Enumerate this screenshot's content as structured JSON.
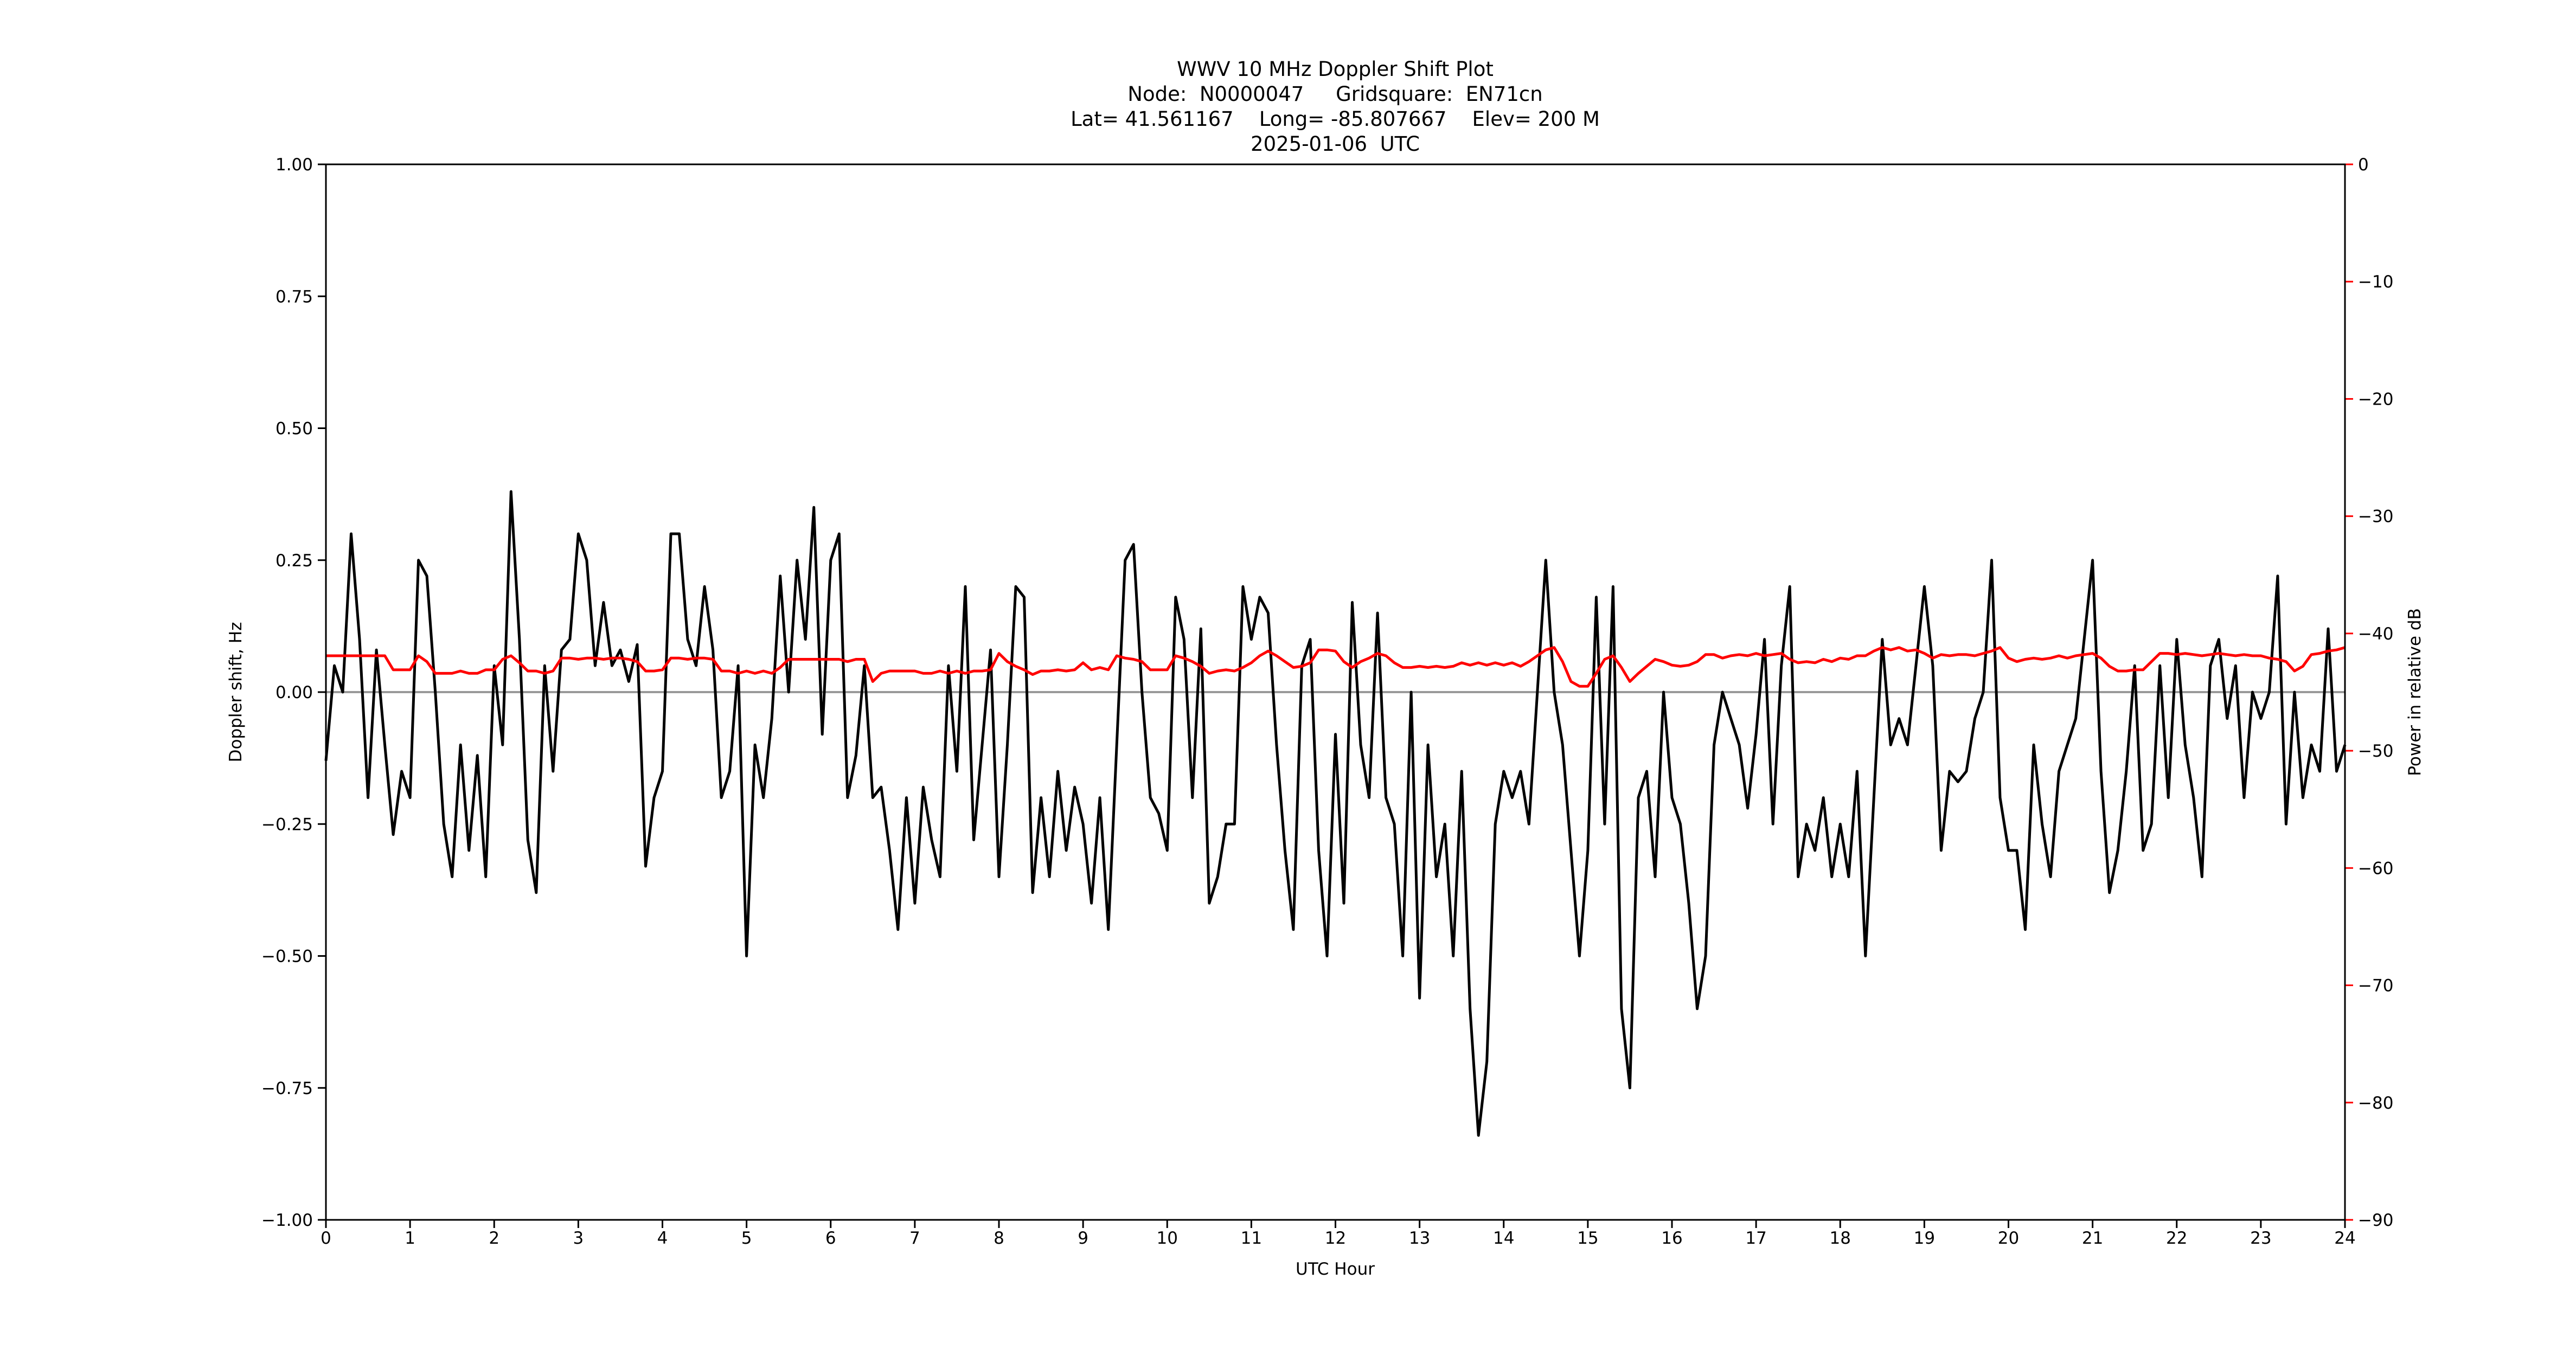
{
  "chart_data": {
    "type": "line",
    "title": [
      "WWV 10 MHz Doppler Shift Plot",
      "Node:  N0000047     Gridsquare:  EN71cn",
      "Lat= 41.561167    Long= -85.807667    Elev= 200 M",
      "2025-01-06  UTC"
    ],
    "xlabel": "UTC Hour",
    "ylabel": "Doppler shift, Hz",
    "y2label": "Power in relative dB",
    "xlim": [
      0,
      24
    ],
    "xticks": [
      0,
      1,
      2,
      3,
      4,
      5,
      6,
      7,
      8,
      9,
      10,
      11,
      12,
      13,
      14,
      15,
      16,
      17,
      18,
      19,
      20,
      21,
      22,
      23,
      24
    ],
    "ylim": [
      -1,
      1
    ],
    "yticks": [
      {
        "value": -1,
        "label": "−1.00"
      },
      {
        "value": -0.75,
        "label": "−0.75"
      },
      {
        "value": -0.5,
        "label": "−0.50"
      },
      {
        "value": -0.25,
        "label": "−0.25"
      },
      {
        "value": 0,
        "label": "0.00"
      },
      0.25,
      {
        "value": 0.5,
        "label": "0.50"
      },
      0.75,
      {
        "value": 1,
        "label": "1.00"
      }
    ],
    "y2lim": [
      -90,
      0
    ],
    "y2ticks": [
      {
        "value": -90,
        "label": "−90"
      },
      {
        "value": -80,
        "label": "−80"
      },
      {
        "value": -70,
        "label": "−70"
      },
      {
        "value": -60,
        "label": "−60"
      },
      {
        "value": -50,
        "label": "−50"
      },
      {
        "value": -40,
        "label": "−40"
      },
      {
        "value": -30,
        "label": "−30"
      },
      {
        "value": -20,
        "label": "−20"
      },
      {
        "value": -10,
        "label": "−10"
      },
      0
    ],
    "y2color": "#ff0000",
    "x": [
      0,
      0.1,
      0.2,
      0.3,
      0.4,
      0.5,
      0.6,
      0.7,
      0.8,
      0.9,
      1,
      1.1,
      1.2,
      1.3,
      1.4,
      1.5,
      1.6,
      1.7,
      1.8,
      1.9,
      2,
      2.1,
      2.2,
      2.3,
      2.4,
      2.5,
      2.6,
      2.7,
      2.8,
      2.9,
      3,
      3.1,
      3.2,
      3.3,
      3.4,
      3.5,
      3.6,
      3.7,
      3.8,
      3.9,
      4,
      4.1,
      4.2,
      4.3,
      4.4,
      4.5,
      4.6,
      4.7,
      4.8,
      4.9,
      5,
      5.1,
      5.2,
      5.3,
      5.4,
      5.5,
      5.6,
      5.7,
      5.8,
      5.9,
      6,
      6.1,
      6.2,
      6.3,
      6.4,
      6.5,
      6.6,
      6.7,
      6.8,
      6.9,
      7,
      7.1,
      7.2,
      7.3,
      7.4,
      7.5,
      7.6,
      7.7,
      7.8,
      7.9,
      8,
      8.1,
      8.2,
      8.3,
      8.4,
      8.5,
      8.6,
      8.7,
      8.8,
      8.9,
      9,
      9.1,
      9.2,
      9.3,
      9.4,
      9.5,
      9.6,
      9.7,
      9.8,
      9.9,
      10,
      10.1,
      10.2,
      10.3,
      10.4,
      10.5,
      10.6,
      10.7,
      10.8,
      10.9,
      11,
      11.1,
      11.2,
      11.3,
      11.4,
      11.5,
      11.6,
      11.7,
      11.8,
      11.9,
      12,
      12.1,
      12.2,
      12.3,
      12.4,
      12.5,
      12.6,
      12.7,
      12.8,
      12.9,
      13,
      13.1,
      13.2,
      13.3,
      13.4,
      13.5,
      13.6,
      13.7,
      13.8,
      13.9,
      14,
      14.1,
      14.2,
      14.3,
      14.4,
      14.5,
      14.6,
      14.7,
      14.8,
      14.9,
      15,
      15.1,
      15.2,
      15.3,
      15.4,
      15.5,
      15.6,
      15.7,
      15.8,
      15.9,
      16,
      16.1,
      16.2,
      16.3,
      16.4,
      16.5,
      16.6,
      16.7,
      16.8,
      16.9,
      17,
      17.1,
      17.2,
      17.3,
      17.4,
      17.5,
      17.6,
      17.7,
      17.8,
      17.9,
      18,
      18.1,
      18.2,
      18.3,
      18.4,
      18.5,
      18.6,
      18.7,
      18.8,
      18.9,
      19,
      19.1,
      19.2,
      19.3,
      19.4,
      19.5,
      19.6,
      19.7,
      19.8,
      19.9,
      20,
      20.1,
      20.2,
      20.3,
      20.4,
      20.5,
      20.6,
      20.7,
      20.8,
      20.9,
      21,
      21.1,
      21.2,
      21.3,
      21.4,
      21.5,
      21.6,
      21.7,
      21.8,
      21.9,
      22,
      22.1,
      22.2,
      22.3,
      22.4,
      22.5,
      22.6,
      22.7,
      22.8,
      22.9,
      23,
      23.1,
      23.2,
      23.3,
      23.4,
      23.5,
      23.6,
      23.7,
      23.8,
      23.9,
      24
    ],
    "series": [
      {
        "name": "Doppler shift",
        "color": "#000000",
        "values": [
          -0.13,
          0.05,
          0.0,
          0.3,
          0.1,
          -0.2,
          0.08,
          -0.1,
          -0.27,
          -0.15,
          -0.2,
          0.25,
          0.22,
          0.0,
          -0.25,
          -0.35,
          -0.1,
          -0.3,
          -0.12,
          -0.35,
          0.05,
          -0.1,
          0.38,
          0.1,
          -0.28,
          -0.38,
          0.05,
          -0.15,
          0.08,
          0.1,
          0.3,
          0.25,
          0.05,
          0.17,
          0.05,
          0.08,
          0.02,
          0.09,
          -0.33,
          -0.2,
          -0.15,
          0.3,
          0.3,
          0.1,
          0.05,
          0.2,
          0.08,
          -0.2,
          -0.15,
          0.05,
          -0.5,
          -0.1,
          -0.2,
          -0.05,
          0.22,
          0.0,
          0.25,
          0.1,
          0.35,
          -0.08,
          0.25,
          0.3,
          -0.2,
          -0.12,
          0.05,
          -0.2,
          -0.18,
          -0.3,
          -0.45,
          -0.2,
          -0.4,
          -0.18,
          -0.28,
          -0.35,
          0.05,
          -0.15,
          0.2,
          -0.28,
          -0.1,
          0.08,
          -0.35,
          -0.1,
          0.2,
          0.18,
          -0.38,
          -0.2,
          -0.35,
          -0.15,
          -0.3,
          -0.18,
          -0.25,
          -0.4,
          -0.2,
          -0.45,
          -0.1,
          0.25,
          0.28,
          0.0,
          -0.2,
          -0.23,
          -0.3,
          0.18,
          0.1,
          -0.2,
          0.12,
          -0.4,
          -0.35,
          -0.25,
          -0.25,
          0.2,
          0.1,
          0.18,
          0.15,
          -0.1,
          -0.3,
          -0.45,
          0.05,
          0.1,
          -0.3,
          -0.5,
          -0.08,
          -0.4,
          0.17,
          -0.1,
          -0.2,
          0.15,
          -0.2,
          -0.25,
          -0.5,
          0.0,
          -0.58,
          -0.1,
          -0.35,
          -0.25,
          -0.5,
          -0.15,
          -0.6,
          -0.84,
          -0.7,
          -0.25,
          -0.15,
          -0.2,
          -0.15,
          -0.25,
          0.0,
          0.25,
          0.0,
          -0.1,
          -0.3,
          -0.5,
          -0.3,
          0.18,
          -0.25,
          0.2,
          -0.6,
          -0.75,
          -0.2,
          -0.15,
          -0.35,
          0.0,
          -0.2,
          -0.25,
          -0.4,
          -0.6,
          -0.5,
          -0.1,
          0.0,
          -0.05,
          -0.1,
          -0.22,
          -0.08,
          0.1,
          -0.25,
          0.05,
          0.2,
          -0.35,
          -0.25,
          -0.3,
          -0.2,
          -0.35,
          -0.25,
          -0.35,
          -0.15,
          -0.5,
          -0.2,
          0.1,
          -0.1,
          -0.05,
          -0.1,
          0.05,
          0.2,
          0.05,
          -0.3,
          -0.15,
          -0.17,
          -0.15,
          -0.05,
          0.0,
          0.25,
          -0.2,
          -0.3,
          -0.3,
          -0.45,
          -0.1,
          -0.25,
          -0.35,
          -0.15,
          -0.1,
          -0.05,
          0.1,
          0.25,
          -0.15,
          -0.38,
          -0.3,
          -0.15,
          0.05,
          -0.3,
          -0.25,
          0.05,
          -0.2,
          0.1,
          -0.1,
          -0.2,
          -0.35,
          0.05,
          0.1,
          -0.05,
          0.05,
          -0.2,
          0.0,
          -0.05,
          0.0,
          0.22,
          -0.25,
          0.0,
          -0.2,
          -0.1,
          -0.15,
          0.12,
          -0.15,
          -0.1
        ]
      },
      {
        "name": "Power",
        "color": "#ff0000",
        "axis": "y2",
        "values": [
          -41.9,
          -41.9,
          -41.9,
          -41.9,
          -41.9,
          -41.9,
          -41.9,
          -41.9,
          -43.1,
          -43.1,
          -43.1,
          -41.9,
          -42.4,
          -43.4,
          -43.4,
          -43.4,
          -43.2,
          -43.4,
          -43.4,
          -43.1,
          -43.1,
          -42.2,
          -41.9,
          -42.5,
          -43.2,
          -43.2,
          -43.4,
          -43.2,
          -42.1,
          -42.1,
          -42.2,
          -42.1,
          -42.1,
          -42.2,
          -42.1,
          -42.1,
          -42.2,
          -42.4,
          -43.2,
          -43.2,
          -43.1,
          -42.1,
          -42.1,
          -42.2,
          -42.1,
          -42.1,
          -42.2,
          -43.2,
          -43.2,
          -43.4,
          -43.2,
          -43.4,
          -43.2,
          -43.4,
          -42.9,
          -42.2,
          -42.2,
          -42.2,
          -42.2,
          -42.2,
          -42.2,
          -42.2,
          -42.4,
          -42.2,
          -42.2,
          -44.1,
          -43.4,
          -43.2,
          -43.2,
          -43.2,
          -43.2,
          -43.4,
          -43.4,
          -43.2,
          -43.4,
          -43.2,
          -43.4,
          -43.2,
          -43.2,
          -43.1,
          -41.7,
          -42.4,
          -42.8,
          -43.1,
          -43.5,
          -43.2,
          -43.2,
          -43.1,
          -43.2,
          -43.1,
          -42.5,
          -43.1,
          -42.9,
          -43.1,
          -41.9,
          -42.1,
          -42.2,
          -42.4,
          -43.1,
          -43.1,
          -43.1,
          -41.9,
          -42.1,
          -42.4,
          -42.8,
          -43.4,
          -43.2,
          -43.1,
          -43.2,
          -42.9,
          -42.5,
          -41.9,
          -41.5,
          -41.9,
          -42.4,
          -42.9,
          -42.8,
          -42.5,
          -41.4,
          -41.4,
          -41.5,
          -42.4,
          -42.9,
          -42.4,
          -42.1,
          -41.7,
          -41.9,
          -42.5,
          -42.9,
          -42.9,
          -42.8,
          -42.9,
          -42.8,
          -42.9,
          -42.8,
          -42.5,
          -42.7,
          -42.5,
          -42.7,
          -42.5,
          -42.7,
          -42.5,
          -42.8,
          -42.4,
          -41.9,
          -41.4,
          -41.2,
          -42.4,
          -44.1,
          -44.5,
          -44.5,
          -43.4,
          -42.2,
          -41.9,
          -42.9,
          -44.1,
          -43.4,
          -42.8,
          -42.2,
          -42.4,
          -42.7,
          -42.8,
          -42.7,
          -42.4,
          -41.8,
          -41.8,
          -42.1,
          -41.9,
          -41.8,
          -41.9,
          -41.7,
          -41.9,
          -41.8,
          -41.7,
          -42.2,
          -42.5,
          -42.4,
          -42.5,
          -42.2,
          -42.4,
          -42.1,
          -42.2,
          -41.9,
          -41.9,
          -41.5,
          -41.2,
          -41.4,
          -41.2,
          -41.5,
          -41.4,
          -41.7,
          -42.1,
          -41.8,
          -41.9,
          -41.8,
          -41.8,
          -41.9,
          -41.7,
          -41.5,
          -41.2,
          -42.1,
          -42.4,
          -42.2,
          -42.1,
          -42.2,
          -42.1,
          -41.9,
          -42.1,
          -41.9,
          -41.8,
          -41.7,
          -42.1,
          -42.8,
          -43.2,
          -43.2,
          -43.1,
          -43.1,
          -42.4,
          -41.7,
          -41.7,
          -41.8,
          -41.7,
          -41.8,
          -41.9,
          -41.8,
          -41.7,
          -41.8,
          -41.9,
          -41.8,
          -41.9,
          -41.9,
          -42.1,
          -42.2,
          -42.4,
          -43.2,
          -42.8,
          -41.8,
          -41.7,
          -41.5,
          -41.4,
          -41.2
        ]
      }
    ]
  }
}
